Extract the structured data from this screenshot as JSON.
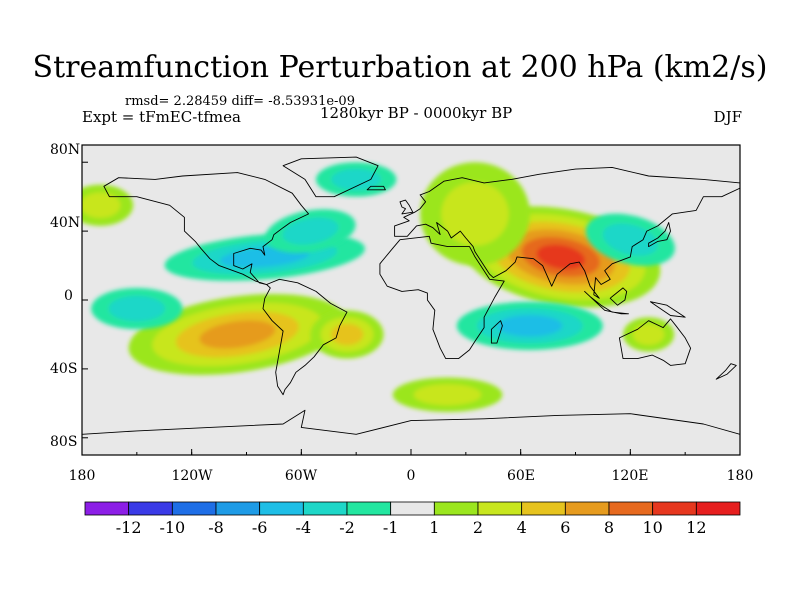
{
  "title": "Streamfunction Perturbation at 200 hPa (km2/s)",
  "stats": "rmsd= 2.28459  diff= -8.53931e-09",
  "experiment": "Expt = tFmEC-tfmea",
  "period": "1280kyr BP - 0000kyr BP",
  "season": "DJF",
  "axes": {
    "lat_labels": [
      "80N",
      "40N",
      "0",
      "40S",
      "80S"
    ],
    "lon_labels": [
      "180",
      "120W",
      "60W",
      "0",
      "60E",
      "120E",
      "180"
    ]
  },
  "colorbar": {
    "labels": [
      "-12",
      "-10",
      "-8",
      "-6",
      "-4",
      "-2",
      "-1",
      "1",
      "2",
      "4",
      "6",
      "8",
      "10",
      "12"
    ],
    "colors": [
      "#8c1ee6",
      "#3a3ae6",
      "#1e6ee6",
      "#1e9be6",
      "#1ebee6",
      "#1ed7c8",
      "#23e6a0",
      "#e8e8e8",
      "#9be61e",
      "#c8e61e",
      "#e6c31e",
      "#e69b1e",
      "#e6691e",
      "#e6371e",
      "#e61e1e"
    ]
  },
  "chart_data": {
    "type": "contour-map",
    "variable": "200 hPa streamfunction perturbation",
    "units": "km2/s",
    "lon_range": [
      -180,
      180
    ],
    "lat_range": [
      -90,
      90
    ],
    "levels": [
      -12,
      -10,
      -8,
      -6,
      -4,
      -2,
      -1,
      1,
      2,
      4,
      6,
      8,
      10,
      12
    ],
    "features": [
      {
        "name": "south-asia-high",
        "lon": 82,
        "lat": 25,
        "peak": 10
      },
      {
        "name": "south-pacific-positive",
        "lon": -95,
        "lat": -20,
        "peak": 7
      },
      {
        "name": "north-africa-europe-positive",
        "lon": 35,
        "lat": 50,
        "peak": 3
      },
      {
        "name": "south-atlantic-positive",
        "lon": -35,
        "lat": -20,
        "peak": 4
      },
      {
        "name": "australia-positive",
        "lon": 130,
        "lat": -20,
        "peak": 3
      },
      {
        "name": "south-indian-ocean-positive",
        "lon": 20,
        "lat": -55,
        "peak": 3
      },
      {
        "name": "north-pacific-positive",
        "lon": -170,
        "lat": 55,
        "peak": 2
      },
      {
        "name": "tropical-north-atlantic-negative",
        "lon": -80,
        "lat": 25,
        "peak": -5
      },
      {
        "name": "north-atlantic-negative",
        "lon": -55,
        "lat": 40,
        "peak": -3
      },
      {
        "name": "indian-ocean-negative",
        "lon": 65,
        "lat": -15,
        "peak": -5
      },
      {
        "name": "west-pacific-negative",
        "lon": 120,
        "lat": 35,
        "peak": -3
      },
      {
        "name": "equatorial-pacific-negative",
        "lon": -150,
        "lat": -5,
        "peak": -3
      },
      {
        "name": "arctic-negative",
        "lon": -30,
        "lat": 70,
        "peak": -3
      }
    ]
  }
}
